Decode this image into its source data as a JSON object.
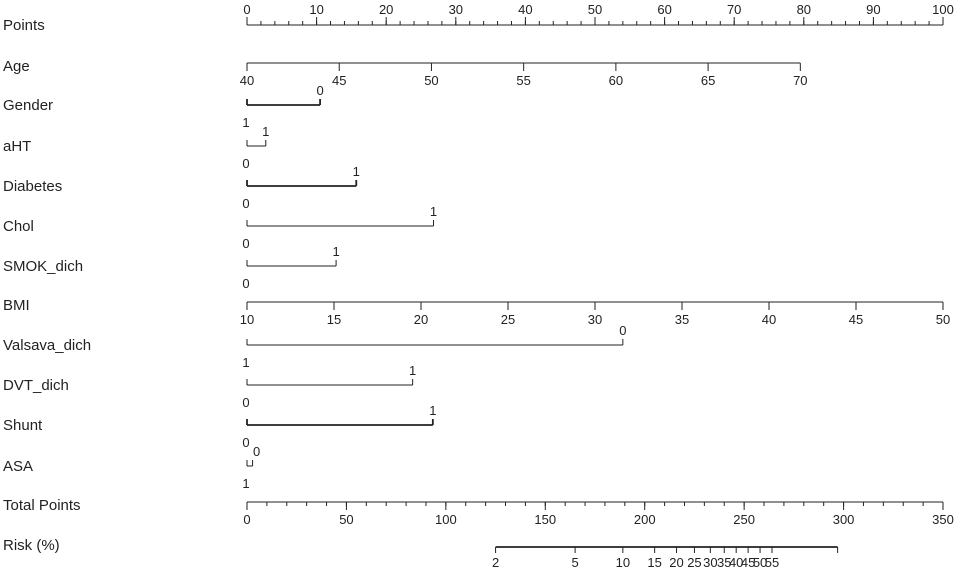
{
  "chart_data": {
    "type": "nomogram",
    "rows": [
      {
        "label": "Points",
        "kind": "axis",
        "points_min": 0,
        "points_max": 100,
        "ticks": [
          {
            "v": 0,
            "t": "0"
          },
          {
            "v": 10,
            "t": "10"
          },
          {
            "v": 20,
            "t": "20"
          },
          {
            "v": 30,
            "t": "30"
          },
          {
            "v": 40,
            "t": "40"
          },
          {
            "v": 50,
            "t": "50"
          },
          {
            "v": 60,
            "t": "60"
          },
          {
            "v": 70,
            "t": "70"
          },
          {
            "v": 80,
            "t": "80"
          },
          {
            "v": 90,
            "t": "90"
          },
          {
            "v": 100,
            "t": "100"
          }
        ],
        "minor_step": 2,
        "labels_above": true
      },
      {
        "label": "Age",
        "kind": "axis",
        "points_min": 0,
        "points_max": 79.5,
        "ticks": [
          {
            "v": 40,
            "t": "40"
          },
          {
            "v": 45,
            "t": "45"
          },
          {
            "v": 50,
            "t": "50"
          },
          {
            "v": 55,
            "t": "55"
          },
          {
            "v": 60,
            "t": "60"
          },
          {
            "v": 65,
            "t": "65"
          },
          {
            "v": 70,
            "t": "70"
          }
        ],
        "value_min": 40,
        "value_max": 70
      },
      {
        "label": "Gender",
        "kind": "factor",
        "thick": true,
        "levels": [
          {
            "t": "0",
            "points": 10.5,
            "pos": "above"
          },
          {
            "t": "1",
            "points": 0,
            "pos": "below"
          }
        ]
      },
      {
        "label": "aHT",
        "kind": "factor",
        "levels": [
          {
            "t": "1",
            "points": 2.7,
            "pos": "above"
          },
          {
            "t": "0",
            "points": 0,
            "pos": "below"
          }
        ]
      },
      {
        "label": "Diabetes",
        "kind": "factor",
        "thick": true,
        "levels": [
          {
            "t": "1",
            "points": 15.7,
            "pos": "above"
          },
          {
            "t": "0",
            "points": 0,
            "pos": "below"
          }
        ]
      },
      {
        "label": "Chol",
        "kind": "factor",
        "levels": [
          {
            "t": "1",
            "points": 26.8,
            "pos": "above"
          },
          {
            "t": "0",
            "points": 0,
            "pos": "below"
          }
        ]
      },
      {
        "label": "SMOK_dich",
        "kind": "factor",
        "levels": [
          {
            "t": "1",
            "points": 12.8,
            "pos": "above"
          },
          {
            "t": "0",
            "points": 0,
            "pos": "below"
          }
        ]
      },
      {
        "label": "BMI",
        "kind": "axis",
        "points_min": 0,
        "points_max": 100,
        "ticks": [
          {
            "v": 10,
            "t": "10"
          },
          {
            "v": 15,
            "t": "15"
          },
          {
            "v": 20,
            "t": "20"
          },
          {
            "v": 25,
            "t": "25"
          },
          {
            "v": 30,
            "t": "30"
          },
          {
            "v": 35,
            "t": "35"
          },
          {
            "v": 40,
            "t": "40"
          },
          {
            "v": 45,
            "t": "45"
          },
          {
            "v": 50,
            "t": "50"
          }
        ],
        "value_min": 10,
        "value_max": 50
      },
      {
        "label": "Valsava_dich",
        "kind": "factor",
        "levels": [
          {
            "t": "0",
            "points": 54,
            "pos": "above"
          },
          {
            "t": "1",
            "points": 0,
            "pos": "below"
          }
        ]
      },
      {
        "label": "DVT_dich",
        "kind": "factor",
        "levels": [
          {
            "t": "1",
            "points": 23.8,
            "pos": "above"
          },
          {
            "t": "0",
            "points": 0,
            "pos": "below"
          }
        ]
      },
      {
        "label": "Shunt",
        "kind": "factor",
        "thick": true,
        "levels": [
          {
            "t": "1",
            "points": 26.7,
            "pos": "above"
          },
          {
            "t": "0",
            "points": 0,
            "pos": "below"
          }
        ]
      },
      {
        "label": "ASA",
        "kind": "factor",
        "levels": [
          {
            "t": "0",
            "points": 0.8,
            "pos": "above"
          },
          {
            "t": "1",
            "points": 0,
            "pos": "below"
          }
        ]
      },
      {
        "label": "Total Points",
        "kind": "axis",
        "total_min": 0,
        "total_max": 350,
        "ticks": [
          {
            "v": 0,
            "t": "0"
          },
          {
            "v": 50,
            "t": "50"
          },
          {
            "v": 100,
            "t": "100"
          },
          {
            "v": 150,
            "t": "150"
          },
          {
            "v": 200,
            "t": "200"
          },
          {
            "v": 250,
            "t": "250"
          },
          {
            "v": 300,
            "t": "300"
          },
          {
            "v": 350,
            "t": "350"
          }
        ],
        "minor_step": 10
      },
      {
        "label": "Risk (%)",
        "kind": "risk",
        "thick": true,
        "ticks": [
          {
            "total": 125,
            "t": "2"
          },
          {
            "total": 165,
            "t": "5"
          },
          {
            "total": 189,
            "t": "10"
          },
          {
            "total": 205,
            "t": "15"
          },
          {
            "total": 216,
            "t": "20"
          },
          {
            "total": 225,
            "t": "25"
          },
          {
            "total": 233,
            "t": "30"
          },
          {
            "total": 240,
            "t": "35"
          },
          {
            "total": 246,
            "t": "40"
          },
          {
            "total": 252,
            "t": "45"
          },
          {
            "total": 258,
            "t": "50"
          },
          {
            "total": 264,
            "t": "55"
          }
        ],
        "range": [
          125,
          297
        ]
      }
    ]
  }
}
